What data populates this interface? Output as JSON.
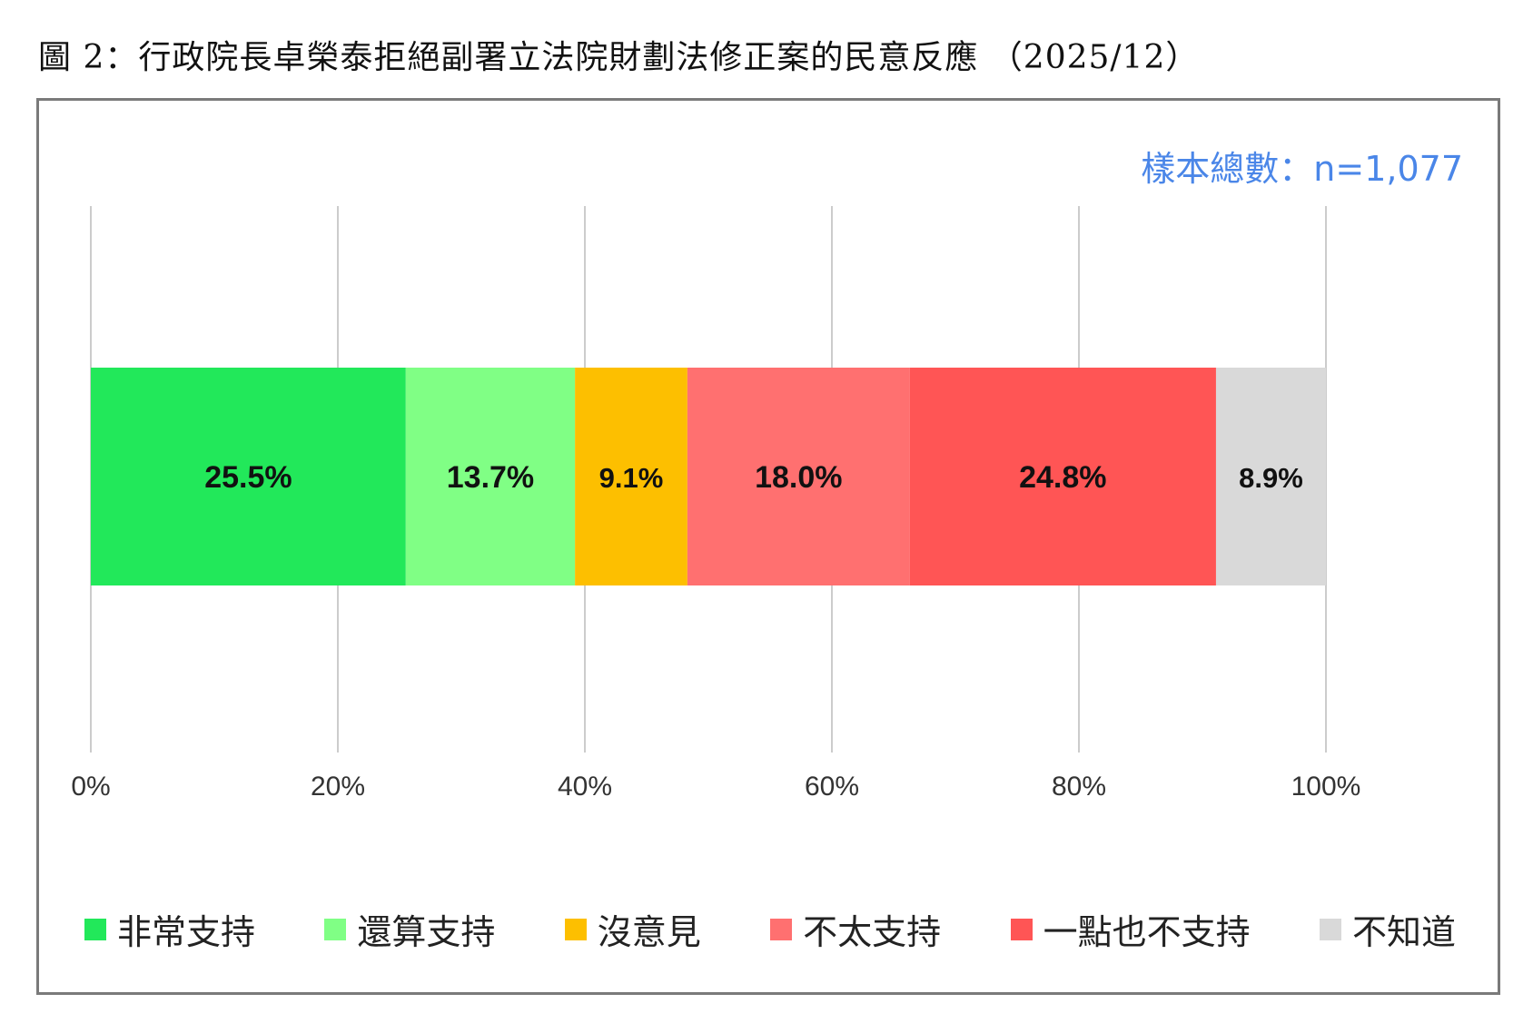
{
  "title": "圖 2：行政院長卓榮泰拒絕副署立法院財劃法修正案的民意反應 （2025/12）",
  "chart_data": {
    "type": "bar",
    "orientation": "horizontal",
    "stacked": true,
    "sample_size": "樣本總數：n=1,077",
    "series": [
      {
        "name": "非常支持",
        "value": 25.5,
        "label": "25.5%",
        "color": "#22e85a"
      },
      {
        "name": "還算支持",
        "value": 13.7,
        "label": "13.7%",
        "color": "#80ff85"
      },
      {
        "name": "沒意見",
        "value": 9.1,
        "label": "9.1%",
        "color": "#fdbf00"
      },
      {
        "name": "不太支持",
        "value": 18.0,
        "label": "18.0%",
        "color": "#ff7070"
      },
      {
        "name": "一點也不支持",
        "value": 24.8,
        "label": "24.8%",
        "color": "#ff5555"
      },
      {
        "name": "不知道",
        "value": 8.9,
        "label": "8.9%",
        "color": "#d9d9d9"
      }
    ],
    "x_ticks": [
      "0%",
      "20%",
      "40%",
      "60%",
      "80%",
      "100%"
    ],
    "xlim": [
      0,
      100
    ],
    "grid": true,
    "legend_position": "bottom"
  }
}
